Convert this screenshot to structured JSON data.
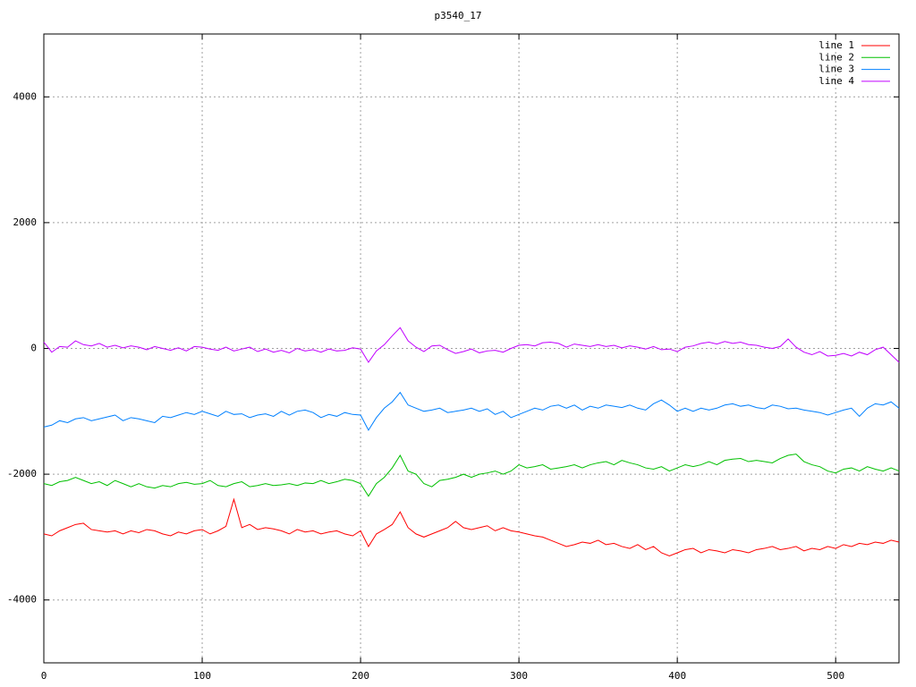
{
  "chart_data": {
    "type": "line",
    "title": "p3540_17",
    "x": [
      0,
      5,
      10,
      15,
      20,
      25,
      30,
      35,
      40,
      45,
      50,
      55,
      60,
      65,
      70,
      75,
      80,
      85,
      90,
      95,
      100,
      105,
      110,
      115,
      120,
      125,
      130,
      135,
      140,
      145,
      150,
      155,
      160,
      165,
      170,
      175,
      180,
      185,
      190,
      195,
      200,
      205,
      210,
      215,
      220,
      225,
      230,
      235,
      240,
      245,
      250,
      255,
      260,
      265,
      270,
      275,
      280,
      285,
      290,
      295,
      300,
      305,
      310,
      315,
      320,
      325,
      330,
      335,
      340,
      345,
      350,
      355,
      360,
      365,
      370,
      375,
      380,
      385,
      390,
      395,
      400,
      405,
      410,
      415,
      420,
      425,
      430,
      435,
      440,
      445,
      450,
      455,
      460,
      465,
      470,
      475,
      480,
      485,
      490,
      495,
      500,
      505,
      510,
      515,
      520,
      525,
      530,
      535,
      540
    ],
    "series": [
      {
        "name": "line 1",
        "color": "#ff0000",
        "values": [
          -2950,
          -2980,
          -2900,
          -2850,
          -2800,
          -2780,
          -2880,
          -2900,
          -2920,
          -2900,
          -2950,
          -2900,
          -2930,
          -2880,
          -2900,
          -2950,
          -2980,
          -2920,
          -2950,
          -2900,
          -2880,
          -2950,
          -2900,
          -2830,
          -2400,
          -2850,
          -2800,
          -2880,
          -2850,
          -2870,
          -2900,
          -2950,
          -2880,
          -2920,
          -2900,
          -2950,
          -2920,
          -2900,
          -2950,
          -2980,
          -2900,
          -3150,
          -2950,
          -2880,
          -2800,
          -2600,
          -2850,
          -2950,
          -3000,
          -2950,
          -2900,
          -2850,
          -2750,
          -2850,
          -2880,
          -2850,
          -2820,
          -2900,
          -2850,
          -2900,
          -2920,
          -2950,
          -2980,
          -3000,
          -3050,
          -3100,
          -3150,
          -3120,
          -3080,
          -3100,
          -3050,
          -3120,
          -3100,
          -3150,
          -3180,
          -3120,
          -3200,
          -3150,
          -3250,
          -3300,
          -3250,
          -3200,
          -3180,
          -3250,
          -3200,
          -3220,
          -3250,
          -3200,
          -3220,
          -3250,
          -3200,
          -3180,
          -3150,
          -3200,
          -3180,
          -3150,
          -3220,
          -3180,
          -3200,
          -3150,
          -3180,
          -3120,
          -3150,
          -3100,
          -3120,
          -3080,
          -3100,
          -3050,
          -3080
        ]
      },
      {
        "name": "line 2",
        "color": "#00c000",
        "values": [
          -2150,
          -2180,
          -2120,
          -2100,
          -2050,
          -2100,
          -2150,
          -2120,
          -2180,
          -2100,
          -2150,
          -2200,
          -2150,
          -2200,
          -2220,
          -2180,
          -2200,
          -2150,
          -2130,
          -2160,
          -2150,
          -2100,
          -2180,
          -2200,
          -2150,
          -2120,
          -2200,
          -2180,
          -2150,
          -2180,
          -2170,
          -2150,
          -2180,
          -2140,
          -2150,
          -2100,
          -2150,
          -2120,
          -2080,
          -2100,
          -2150,
          -2350,
          -2150,
          -2050,
          -1900,
          -1700,
          -1950,
          -2000,
          -2150,
          -2200,
          -2100,
          -2080,
          -2050,
          -2000,
          -2050,
          -2000,
          -1980,
          -1950,
          -2000,
          -1950,
          -1850,
          -1900,
          -1880,
          -1850,
          -1920,
          -1900,
          -1880,
          -1850,
          -1900,
          -1850,
          -1820,
          -1800,
          -1850,
          -1780,
          -1820,
          -1850,
          -1900,
          -1920,
          -1880,
          -1950,
          -1900,
          -1850,
          -1880,
          -1850,
          -1800,
          -1850,
          -1780,
          -1760,
          -1750,
          -1800,
          -1780,
          -1800,
          -1820,
          -1750,
          -1700,
          -1680,
          -1800,
          -1850,
          -1880,
          -1950,
          -1980,
          -1920,
          -1900,
          -1950,
          -1880,
          -1920,
          -1950,
          -1900,
          -1950
        ]
      },
      {
        "name": "line 3",
        "color": "#0080ff",
        "values": [
          -1250,
          -1220,
          -1150,
          -1180,
          -1120,
          -1100,
          -1150,
          -1120,
          -1090,
          -1060,
          -1150,
          -1100,
          -1120,
          -1150,
          -1180,
          -1080,
          -1100,
          -1060,
          -1020,
          -1050,
          -1000,
          -1040,
          -1080,
          -1000,
          -1050,
          -1040,
          -1100,
          -1060,
          -1040,
          -1080,
          -1000,
          -1060,
          -1000,
          -980,
          -1020,
          -1100,
          -1050,
          -1080,
          -1020,
          -1050,
          -1060,
          -1300,
          -1100,
          -950,
          -850,
          -700,
          -900,
          -950,
          -1000,
          -980,
          -950,
          -1020,
          -1000,
          -980,
          -950,
          -1000,
          -960,
          -1050,
          -1000,
          -1100,
          -1050,
          -1000,
          -950,
          -980,
          -920,
          -900,
          -950,
          -900,
          -980,
          -920,
          -950,
          -900,
          -920,
          -940,
          -900,
          -950,
          -980,
          -880,
          -820,
          -900,
          -1000,
          -950,
          -1000,
          -950,
          -980,
          -950,
          -900,
          -880,
          -920,
          -900,
          -940,
          -960,
          -900,
          -920,
          -960,
          -950,
          -980,
          -1000,
          -1020,
          -1060,
          -1020,
          -980,
          -950,
          -1080,
          -950,
          -880,
          -900,
          -850,
          -950
        ]
      },
      {
        "name": "line 4",
        "color": "#c000ff",
        "values": [
          100,
          -60,
          30,
          20,
          120,
          60,
          40,
          80,
          20,
          50,
          10,
          40,
          20,
          -20,
          30,
          0,
          -30,
          10,
          -40,
          30,
          20,
          -10,
          -30,
          20,
          -40,
          -10,
          20,
          -50,
          -10,
          -60,
          -30,
          -70,
          0,
          -40,
          -20,
          -60,
          -10,
          -40,
          -30,
          10,
          -10,
          -220,
          -40,
          60,
          200,
          330,
          120,
          20,
          -50,
          40,
          50,
          -20,
          -80,
          -50,
          -10,
          -70,
          -40,
          -30,
          -60,
          0,
          50,
          60,
          40,
          90,
          100,
          80,
          20,
          70,
          50,
          30,
          60,
          30,
          50,
          10,
          40,
          20,
          -10,
          30,
          -20,
          -10,
          -50,
          20,
          40,
          80,
          100,
          70,
          110,
          80,
          100,
          60,
          50,
          20,
          0,
          30,
          150,
          20,
          -60,
          -100,
          -50,
          -120,
          -110,
          -80,
          -120,
          -60,
          -100,
          -20,
          20,
          -100,
          -220
        ]
      }
    ],
    "xlim": [
      0,
      540
    ],
    "xticks": [
      0,
      100,
      200,
      300,
      400,
      500
    ],
    "ylim": [
      -5000,
      5000
    ],
    "yticks": [
      -4000,
      -2000,
      0,
      2000,
      4000
    ],
    "grid": true,
    "legend": "top-right"
  }
}
